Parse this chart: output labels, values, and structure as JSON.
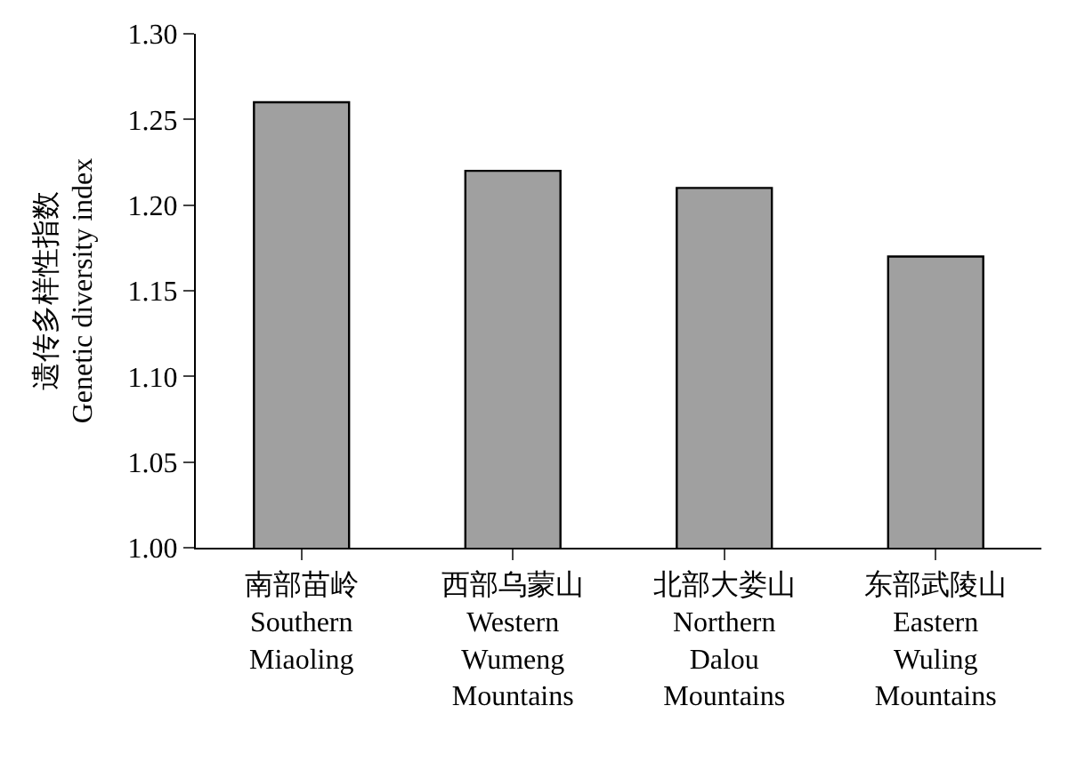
{
  "chart_data": {
    "type": "bar",
    "ylabel": "遗传多样性指数\nGenetic diversity index",
    "categories": [
      "南部苗岭\nSouthern\nMiaoling",
      "西部乌蒙山\nWestern\nWumeng\nMountains",
      "北部大娄山\nNorthern\nDalou\nMountains",
      "东部武陵山\nEastern\nWuling\nMountains"
    ],
    "values": [
      1.26,
      1.22,
      1.21,
      1.17
    ],
    "color": "#a0a0a0",
    "ylim": [
      1.0,
      1.3
    ],
    "yticks": [
      {
        "value": 1.0,
        "label": "1.00"
      },
      {
        "value": 1.05,
        "label": "1.05"
      },
      {
        "value": 1.1,
        "label": "1.10"
      },
      {
        "value": 1.15,
        "label": "1.15"
      },
      {
        "value": 1.2,
        "label": "1.20"
      },
      {
        "value": 1.25,
        "label": "1.25"
      },
      {
        "value": 1.3,
        "label": "1.30"
      }
    ]
  }
}
